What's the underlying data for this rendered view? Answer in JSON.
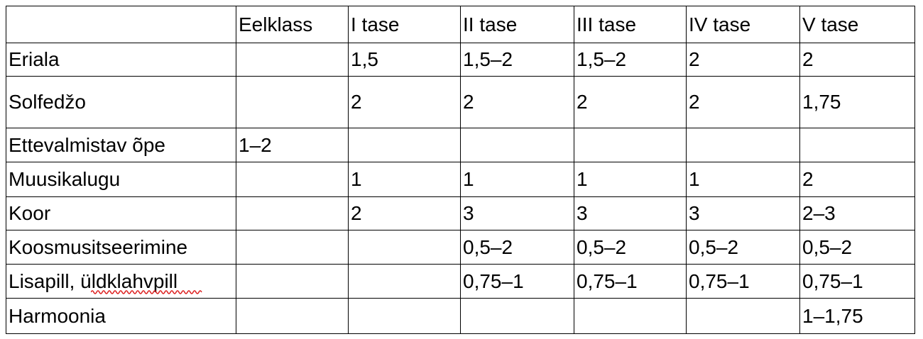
{
  "table": {
    "header": [
      null,
      "Eelklass",
      "I tase",
      "II tase",
      "III tase",
      "IV tase",
      "V tase"
    ],
    "rows": [
      [
        "Eriala",
        null,
        "1,5",
        "1,5–2",
        "1,5–2",
        "2",
        "2"
      ],
      [
        "Solfedžo",
        null,
        "2",
        "2",
        "2",
        "2",
        "1,75"
      ],
      [
        "Ettevalmistav õpe",
        "1–2",
        null,
        null,
        null,
        null,
        null
      ],
      [
        "Muusikalugu",
        null,
        "1",
        "1",
        "1",
        "1",
        "2"
      ],
      [
        "Koor",
        null,
        "2",
        "3",
        "3",
        "3",
        "2–3"
      ],
      [
        "Koosmusitseerimine",
        null,
        null,
        "0,5–2",
        "0,5–2",
        "0,5–2",
        "0,5–2"
      ],
      [
        "Lisapill, üldklahvpill",
        null,
        null,
        "0,75–1",
        "0,75–1",
        "0,75–1",
        "0,75–1"
      ],
      [
        "Harmoonia",
        null,
        null,
        null,
        null,
        null,
        "1–1,75"
      ]
    ]
  }
}
